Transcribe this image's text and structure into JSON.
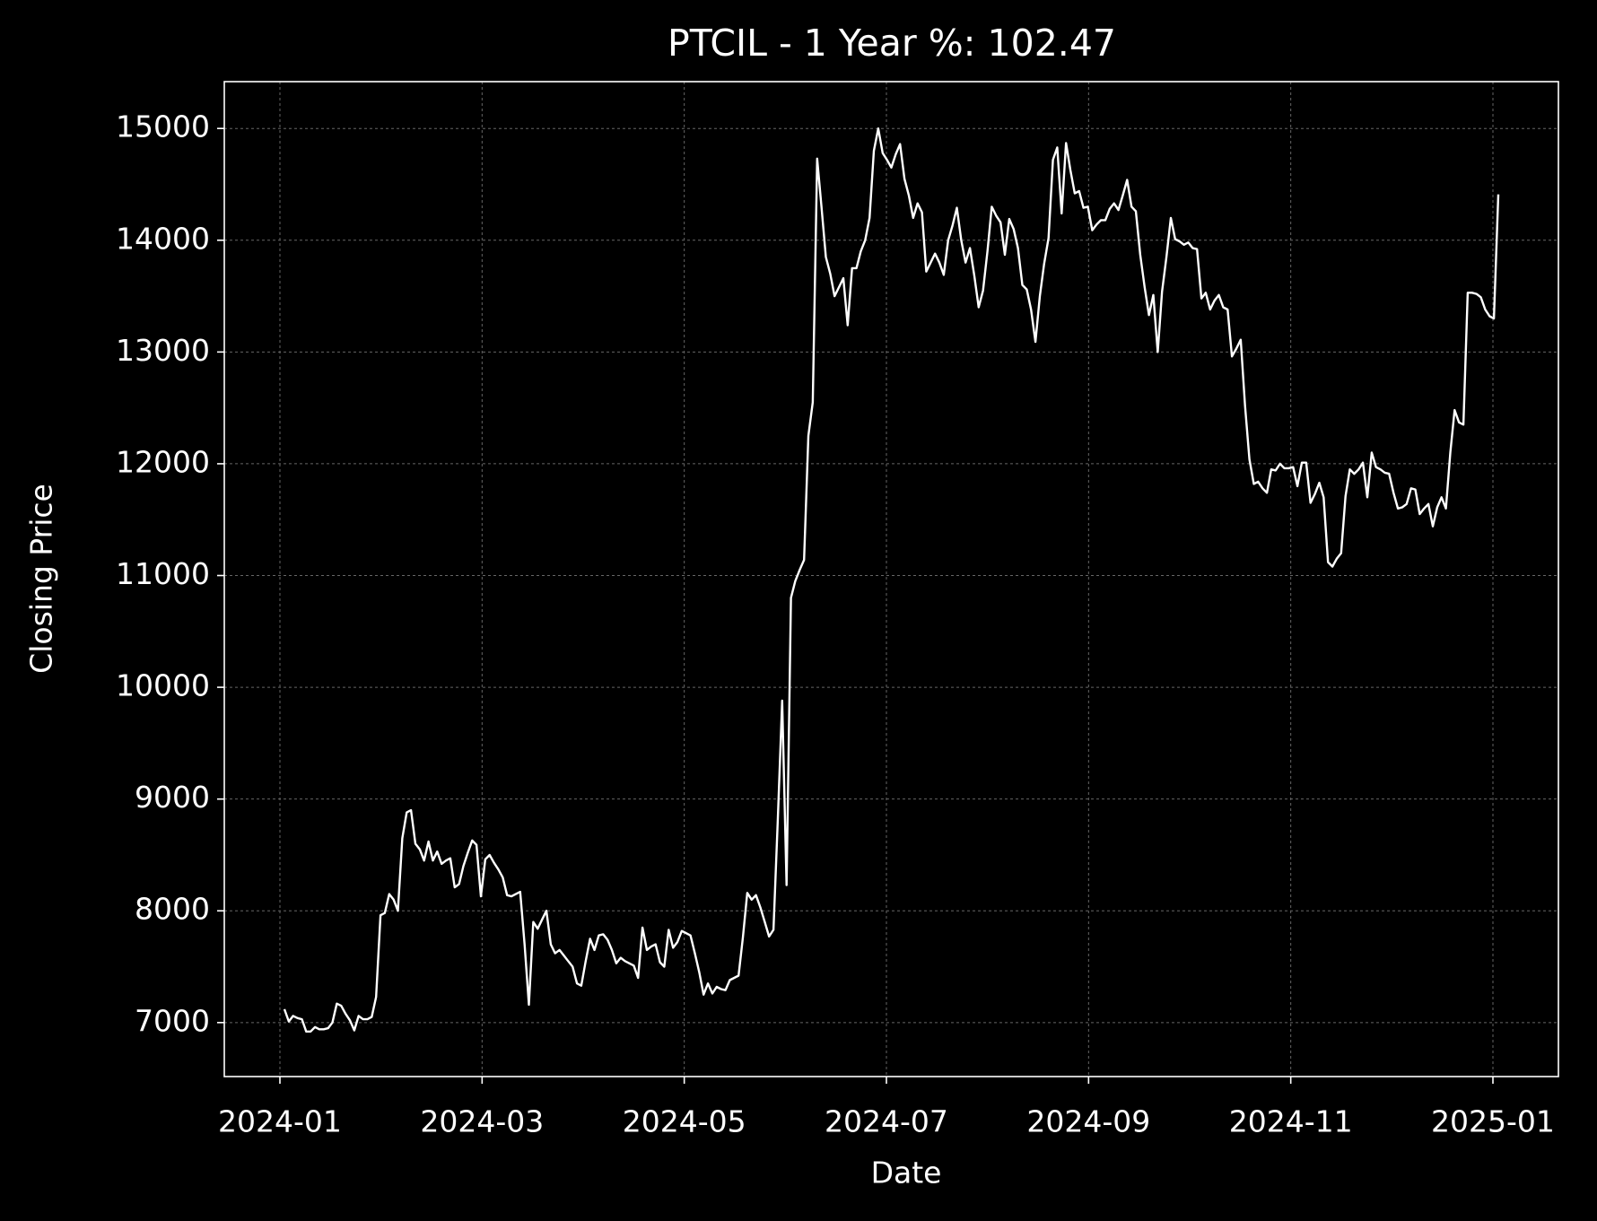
{
  "chart_data": {
    "type": "line",
    "title": "PTCIL - 1 Year %: 102.47",
    "x_label": "Date",
    "y_label": "Closing Price",
    "xticks": [
      "2024-01",
      "2024-03",
      "2024-05",
      "2024-07",
      "2024-09",
      "2024-11",
      "2025-01"
    ],
    "ylim": [
      6517,
      15419
    ],
    "yticks": [
      7000,
      8000,
      9000,
      10000,
      11000,
      12000,
      13000,
      14000,
      15000
    ],
    "grid": true,
    "color": "#ffffff",
    "background": "#000000",
    "values": [
      7120,
      7010,
      7060,
      7040,
      7030,
      6920,
      6920,
      6960,
      6940,
      6940,
      6950,
      7000,
      7170,
      7150,
      7080,
      7020,
      6930,
      7060,
      7030,
      7030,
      7050,
      7230,
      7960,
      7980,
      8150,
      8100,
      8000,
      8650,
      8880,
      8900,
      8600,
      8550,
      8450,
      8620,
      8450,
      8530,
      8420,
      8450,
      8470,
      8210,
      8240,
      8400,
      8520,
      8630,
      8590,
      8130,
      8460,
      8500,
      8430,
      8370,
      8300,
      8140,
      8130,
      8150,
      8170,
      7700,
      7160,
      7900,
      7840,
      7920,
      8000,
      7700,
      7620,
      7650,
      7600,
      7550,
      7500,
      7350,
      7330,
      7550,
      7750,
      7650,
      7780,
      7790,
      7740,
      7650,
      7530,
      7580,
      7550,
      7530,
      7510,
      7400,
      7850,
      7650,
      7680,
      7700,
      7540,
      7500,
      7830,
      7670,
      7720,
      7820,
      7800,
      7780,
      7620,
      7450,
      7250,
      7350,
      7260,
      7320,
      7300,
      7290,
      7380,
      7400,
      7420,
      7760,
      8160,
      8100,
      8140,
      8030,
      7900,
      7770,
      7830,
      8830,
      9880,
      8230,
      10800,
      10950,
      11050,
      11140,
      12250,
      12550,
      14730,
      14300,
      13850,
      13700,
      13500,
      13580,
      13660,
      13240,
      13750,
      13750,
      13900,
      14000,
      14200,
      14800,
      15000,
      14780,
      14720,
      14650,
      14770,
      14860,
      14550,
      14400,
      14200,
      14330,
      14250,
      13720,
      13800,
      13880,
      13800,
      13690,
      14000,
      14130,
      14290,
      14000,
      13800,
      13930,
      13680,
      13400,
      13550,
      13900,
      14300,
      14220,
      14160,
      13870,
      14190,
      14100,
      13930,
      13600,
      13560,
      13380,
      13090,
      13500,
      13790,
      14020,
      14720,
      14830,
      14240,
      14870,
      14630,
      14420,
      14440,
      14290,
      14300,
      14090,
      14140,
      14180,
      14180,
      14280,
      14330,
      14270,
      14400,
      14540,
      14300,
      14260,
      13870,
      13580,
      13330,
      13510,
      13000,
      13540,
      13850,
      14200,
      14010,
      13990,
      13960,
      13980,
      13930,
      13920,
      13480,
      13530,
      13380,
      13460,
      13510,
      13400,
      13380,
      12960,
      13030,
      13110,
      12520,
      12040,
      11820,
      11840,
      11780,
      11740,
      11950,
      11940,
      12000,
      11960,
      11960,
      11970,
      11800,
      12010,
      12010,
      11650,
      11730,
      11830,
      11700,
      11120,
      11080,
      11150,
      11200,
      11710,
      11950,
      11910,
      11950,
      12010,
      11700,
      12100,
      11970,
      11950,
      11920,
      11910,
      11740,
      11600,
      11610,
      11640,
      11780,
      11770,
      11550,
      11600,
      11640,
      11440,
      11610,
      11700,
      11600,
      12100,
      12480,
      12370,
      12350,
      13530,
      13530,
      13520,
      13490,
      13380,
      13320,
      13300,
      14410
    ]
  }
}
